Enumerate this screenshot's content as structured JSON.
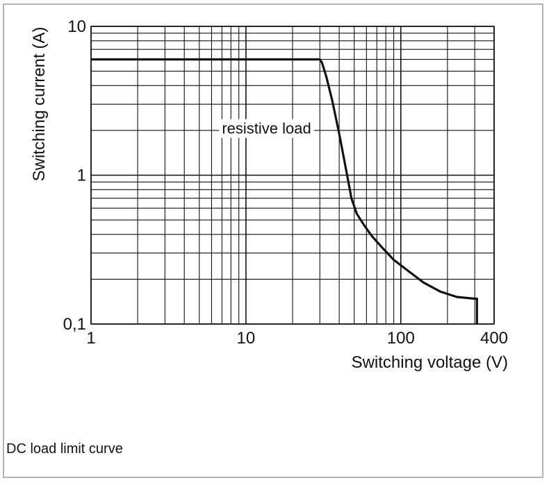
{
  "chart_data": {
    "type": "line",
    "title": "",
    "caption": "DC load limit curve",
    "xlabel": "Switching voltage (V)",
    "ylabel": "Switching current (A)",
    "xscale": "log",
    "yscale": "log",
    "xlim": [
      1,
      400
    ],
    "ylim": [
      0.1,
      10
    ],
    "x_ticks": [
      {
        "value": 1,
        "label": "1"
      },
      {
        "value": 10,
        "label": "10"
      },
      {
        "value": 100,
        "label": "100"
      },
      {
        "value": 400,
        "label": "400"
      }
    ],
    "y_ticks": [
      {
        "value": 0.1,
        "label": "0,1"
      },
      {
        "value": 1,
        "label": "1"
      },
      {
        "value": 10,
        "label": "10"
      }
    ],
    "grid": true,
    "annotation": {
      "text": "resistive load",
      "x": 7,
      "y": 1.9
    },
    "series": [
      {
        "name": "resistive load",
        "x": [
          1,
          30,
          31,
          33,
          36,
          40,
          45,
          48,
          52,
          58,
          65,
          75,
          90,
          110,
          140,
          180,
          230,
          300,
          310,
          310
        ],
        "y": [
          6,
          6,
          5.7,
          4.6,
          3.2,
          1.9,
          1.0,
          0.7,
          0.55,
          0.46,
          0.39,
          0.33,
          0.27,
          0.23,
          0.19,
          0.165,
          0.152,
          0.148,
          0.148,
          0.1
        ]
      }
    ]
  },
  "colors": {
    "grid": "#111111",
    "curve": "#111111",
    "border": "#b3b3b3"
  }
}
